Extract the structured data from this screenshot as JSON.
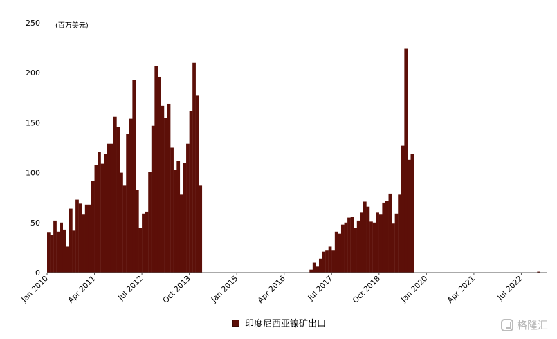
{
  "chart_data": {
    "type": "bar",
    "unit_label": "(百万美元)",
    "series_name": "印度尼西亚镍矿出口",
    "bar_color": "#5c0f08",
    "ylim": [
      0,
      250
    ],
    "y_ticks": [
      0,
      50,
      100,
      150,
      200,
      250
    ],
    "x_tick_labels": [
      "Jan 2010",
      "Apr 2011",
      "Jul 2012",
      "Oct 2013",
      "Jan 2015",
      "Apr 2016",
      "Jul 2017",
      "Oct 2018",
      "Jan 2020",
      "Apr 2021",
      "Jul 2022"
    ],
    "x_start": "Jan 2010",
    "x_end": "Feb 2023",
    "segments": [
      {
        "start": "Jan 2010",
        "values": [
          40,
          38,
          52,
          41,
          50,
          43,
          26,
          64,
          42,
          73,
          69,
          58,
          68,
          68,
          92,
          108,
          121,
          109,
          119,
          129,
          129,
          156,
          146,
          100,
          87,
          139,
          154,
          193,
          83,
          45,
          59,
          61,
          101,
          147,
          207,
          196,
          167,
          155,
          169,
          125,
          103,
          112,
          78,
          110,
          129,
          162,
          210,
          177,
          87
        ]
      },
      {
        "start": "Dec 2016",
        "values": [
          3,
          10,
          6,
          14,
          21,
          22,
          26,
          22,
          41,
          39,
          48,
          50,
          55,
          56,
          45,
          52,
          60,
          71,
          66,
          51,
          50,
          60,
          58,
          70,
          72,
          79,
          49,
          59,
          78,
          127,
          224,
          113,
          119
        ]
      },
      {
        "start": "Dec 2022",
        "values": [
          1
        ]
      }
    ]
  },
  "watermark": {
    "text": "格隆汇"
  }
}
